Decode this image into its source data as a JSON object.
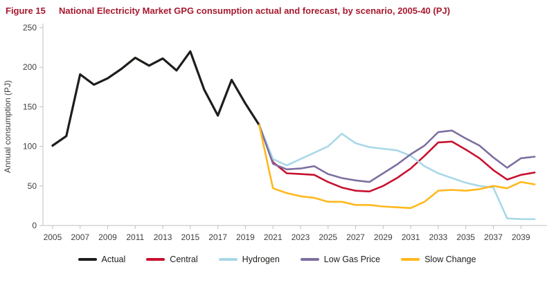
{
  "header": {
    "figure_label": "Figure 15",
    "title": "National Electricity Market GPG consumption actual and forecast, by scenario, 2005-40 (PJ)",
    "title_color": "#a6192e"
  },
  "chart_data": {
    "type": "line",
    "title": "National Electricity Market GPG consumption actual and forecast, by scenario, 2005-40 (PJ)",
    "figure_label": "Figure 15",
    "xlabel": "",
    "ylabel": "Annual consumption (PJ)",
    "xlim": [
      2004.3,
      2040.7
    ],
    "ylim": [
      0,
      250
    ],
    "y_ticks": [
      0,
      50,
      100,
      150,
      200,
      250
    ],
    "x_ticks": [
      2005,
      2007,
      2009,
      2011,
      2013,
      2015,
      2017,
      2019,
      2021,
      2023,
      2025,
      2027,
      2029,
      2031,
      2033,
      2035,
      2037,
      2039
    ],
    "grid": false,
    "legend_position": "bottom",
    "axis_color": "#bfbfbf",
    "tick_label_color": "#404040",
    "series": [
      {
        "name": "Actual",
        "color": "#1d1d1b",
        "stroke_width": 3.2,
        "x_start": 2005,
        "values": [
          101,
          113,
          191,
          178,
          186,
          198,
          212,
          202,
          211,
          196,
          220,
          172,
          139,
          184,
          154,
          127
        ]
      },
      {
        "name": "Central",
        "color": "#c8102e",
        "stroke_width": 2.6,
        "x_start": 2020,
        "values": [
          127,
          80,
          66,
          65,
          64,
          55,
          48,
          44,
          43,
          50,
          60,
          72,
          88,
          105,
          106,
          96,
          85,
          70,
          58,
          64,
          67
        ]
      },
      {
        "name": "Hydrogen",
        "color": "#a8d8e8",
        "stroke_width": 2.6,
        "x_start": 2020,
        "values": [
          127,
          84,
          76,
          84,
          92,
          100,
          116,
          104,
          99,
          97,
          95,
          88,
          75,
          66,
          60,
          54,
          50,
          48,
          9,
          8,
          8
        ]
      },
      {
        "name": "Low Gas Price",
        "color": "#7d6fa0",
        "stroke_width": 2.6,
        "x_start": 2020,
        "values": [
          127,
          78,
          71,
          72,
          75,
          65,
          60,
          57,
          55,
          66,
          77,
          90,
          101,
          118,
          120,
          110,
          101,
          86,
          73,
          85,
          87
        ]
      },
      {
        "name": "Slow Change",
        "color": "#ffb81c",
        "stroke_width": 2.6,
        "x_start": 2020,
        "values": [
          127,
          47,
          41,
          37,
          35,
          30,
          30,
          26,
          26,
          24,
          23,
          22,
          30,
          44,
          45,
          44,
          46,
          50,
          47,
          55,
          52
        ]
      }
    ]
  }
}
